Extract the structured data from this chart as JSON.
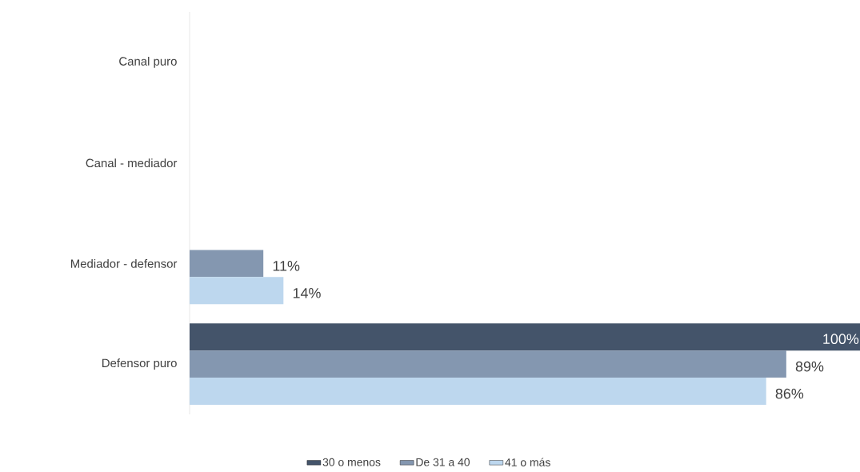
{
  "chart_data": {
    "type": "bar",
    "orientation": "horizontal",
    "legend": "bottom",
    "categories": [
      "Canal puro",
      "Canal - mediador",
      "Mediador - defensor",
      "Defensor puro"
    ],
    "series": [
      {
        "name": "30 o menos",
        "color": "#44546a",
        "values": [
          null,
          null,
          null,
          100
        ],
        "value_labels": [
          null,
          null,
          null,
          "100%"
        ]
      },
      {
        "name": "De 31 a 40",
        "color": "#8497b0",
        "values": [
          null,
          null,
          11,
          89
        ],
        "value_labels": [
          null,
          null,
          "11%",
          "89%"
        ]
      },
      {
        "name": "41 o más",
        "color": "#bdd7ee",
        "values": [
          null,
          null,
          14,
          86
        ],
        "value_labels": [
          null,
          null,
          "14%",
          "86%"
        ]
      }
    ]
  }
}
